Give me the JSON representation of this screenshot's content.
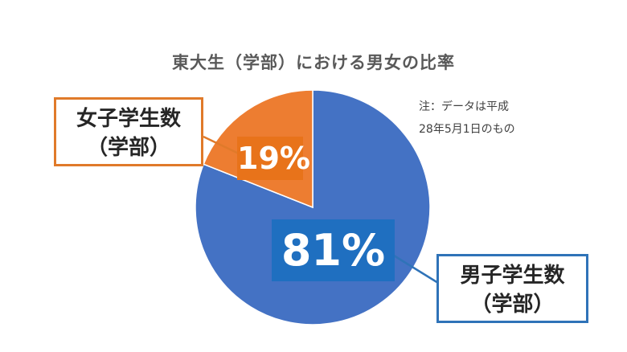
{
  "chart_data": {
    "type": "pie",
    "title": "東大生（学部）における男女の比率",
    "slices": [
      {
        "name": "男子学生数",
        "value": 81,
        "label": "81%",
        "color": "#4472c4"
      },
      {
        "name": "女子学生数",
        "value": 19,
        "label": "19%",
        "color": "#ed7d31"
      }
    ],
    "note": [
      "注：データは平成",
      "28年5月1日のもの"
    ],
    "callouts": {
      "female": {
        "line1": "女子学生数",
        "line2": "（学部）",
        "border_color": "#e07a2a"
      },
      "male": {
        "line1": "男子学生数",
        "line2": "（学部）",
        "border_color": "#2f73b8"
      }
    },
    "label_box_colors": {
      "female": "#e8731a",
      "male": "#1f6fc0"
    }
  }
}
